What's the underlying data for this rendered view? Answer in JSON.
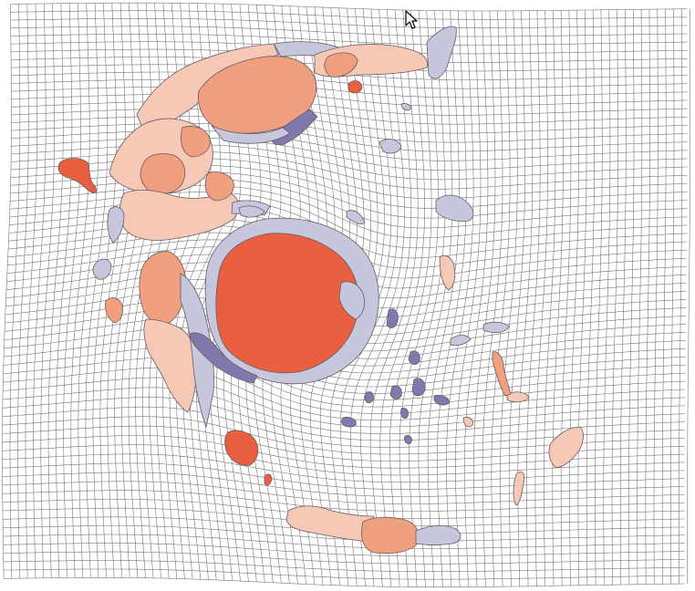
{
  "view": {
    "background": "#ffffff"
  },
  "grid": {
    "color": "#777777"
  },
  "colors": {
    "dark_red": "#e8603f",
    "mid_red": "#f0a07e",
    "light_red": "#f6c9b6",
    "lavender": "#c6c6dc",
    "purple": "#7f79ad",
    "outline": "#6a5a63"
  },
  "icons": {
    "cursor": "arrow-pointer-icon"
  }
}
